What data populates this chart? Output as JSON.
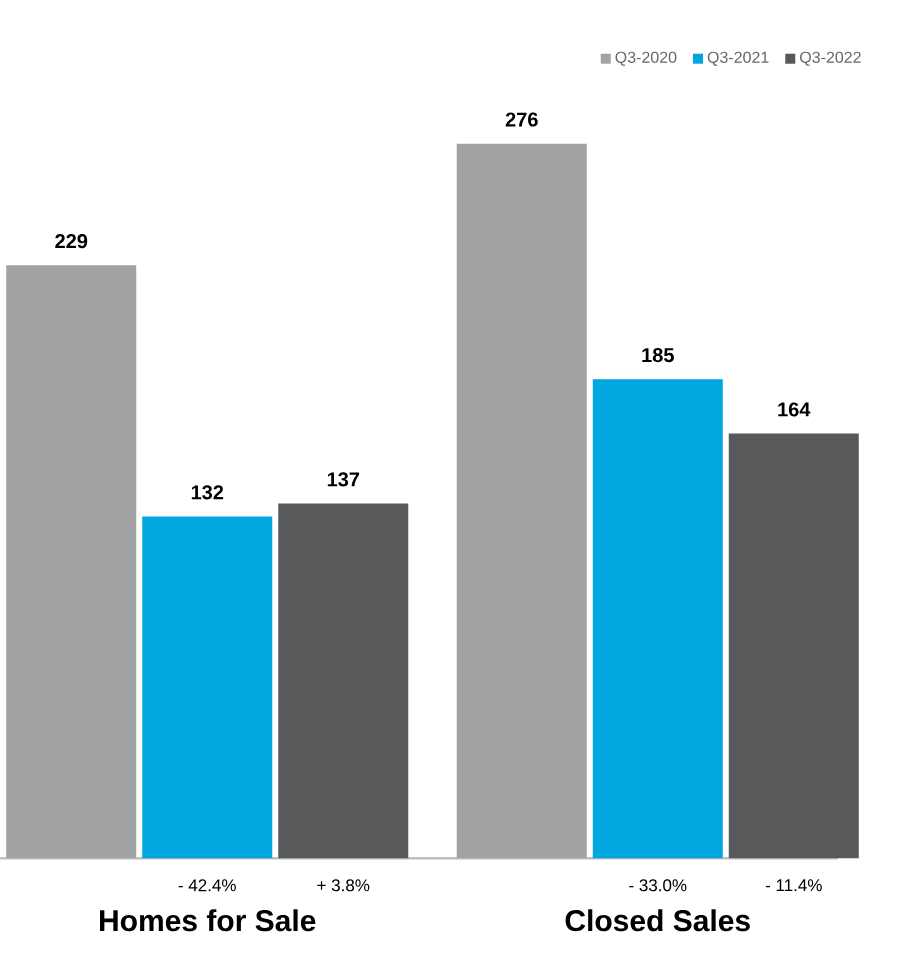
{
  "chart_data": {
    "type": "bar",
    "categories": [
      "Homes for Sale",
      "Closed Sales"
    ],
    "series": [
      {
        "name": "Q3-2020",
        "color": "#a0a2a3",
        "values": [
          229,
          276
        ]
      },
      {
        "name": "Q3-2021",
        "color": "#00a6e0",
        "values": [
          132,
          185
        ]
      },
      {
        "name": "Q3-2022",
        "color": "#58595b",
        "values": [
          137,
          164
        ]
      }
    ],
    "data_labels": true,
    "legend": "top right",
    "annotations": [
      "- 42.4%",
      "+ 3.8%",
      "- 33.0%",
      "- 11.4%"
    ]
  }
}
